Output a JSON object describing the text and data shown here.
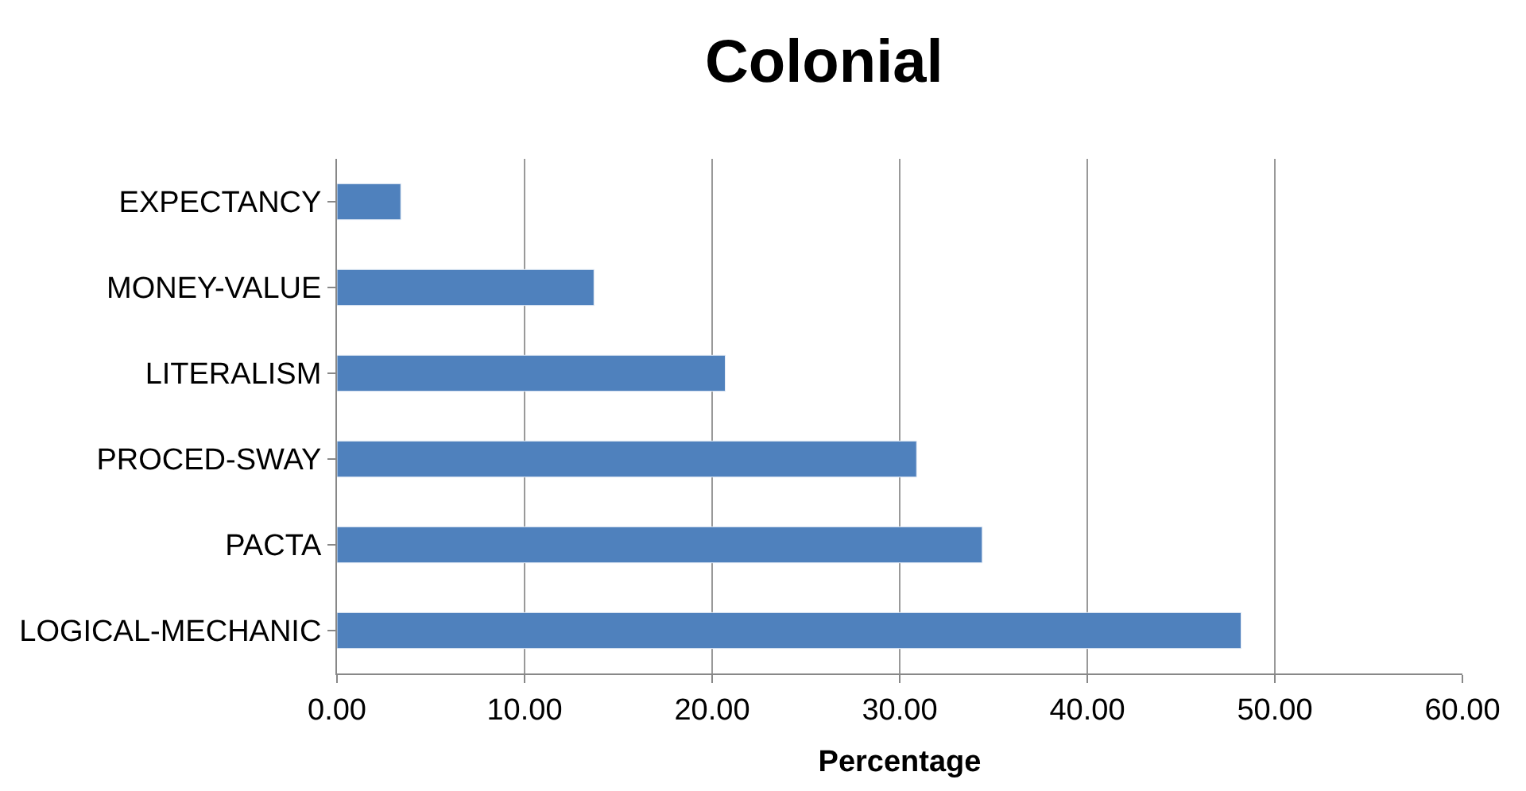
{
  "chart_data": {
    "type": "bar",
    "orientation": "horizontal",
    "title": "Colonial",
    "xlabel": "Percentage",
    "categories": [
      "EXPECTANCY",
      "MONEY-VALUE",
      "LITERALISM",
      "PROCED-SWAY",
      "PACTA",
      "LOGICAL-MECHANIC"
    ],
    "values": [
      3.4,
      13.7,
      20.7,
      30.9,
      34.4,
      48.2
    ],
    "color": "#4f81bd",
    "xlim": [
      0,
      60
    ],
    "xticks": [
      {
        "value": 0,
        "label": "0.00"
      },
      {
        "value": 10,
        "label": "10.00"
      },
      {
        "value": 20,
        "label": "20.00"
      },
      {
        "value": 30,
        "label": "30.00"
      },
      {
        "value": 40,
        "label": "40.00"
      },
      {
        "value": 50,
        "label": "50.00"
      },
      {
        "value": 60,
        "label": "60.00"
      }
    ],
    "grid": "x",
    "legend": false
  }
}
